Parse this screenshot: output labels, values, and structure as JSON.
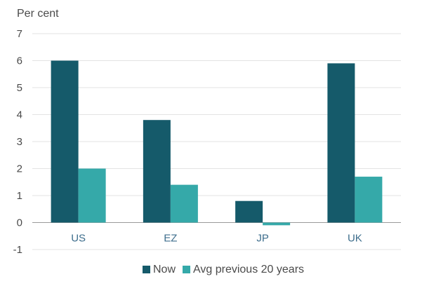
{
  "chart_data": {
    "type": "bar",
    "title": "",
    "ylabel": "Per cent",
    "xlabel": "",
    "categories": [
      "US",
      "EZ",
      "JP",
      "UK"
    ],
    "series": [
      {
        "name": "Now",
        "color": "#155a6a",
        "values": [
          6.0,
          3.8,
          0.8,
          5.9
        ]
      },
      {
        "name": "Avg previous 20 years",
        "color": "#35a9a9",
        "values": [
          2.0,
          1.4,
          -0.1,
          1.7
        ]
      }
    ],
    "ylim": [
      -1,
      7
    ],
    "yticks": [
      -1,
      0,
      1,
      2,
      3,
      4,
      5,
      6,
      7
    ],
    "grid": true,
    "legend_position": "bottom-center"
  }
}
